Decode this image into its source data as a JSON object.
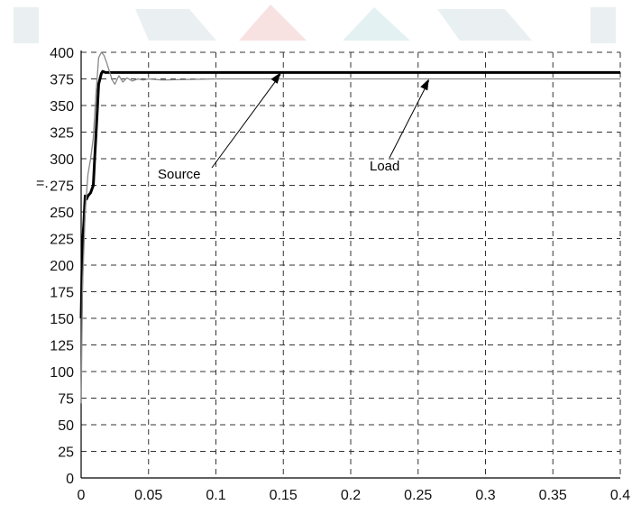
{
  "chart_data": {
    "type": "line",
    "title": "",
    "xlabel": "",
    "ylabel": "",
    "xlim": [
      0,
      0.4
    ],
    "ylim": [
      0,
      400
    ],
    "grid": true,
    "x_ticks": [
      "0",
      "0.05",
      "0.1",
      "0.15",
      "0.2",
      "0.25",
      "0.3",
      "0.35",
      "0.4"
    ],
    "y_ticks": [
      "0",
      "25",
      "50",
      "75",
      "100",
      "125",
      "150",
      "175",
      "200",
      "225",
      "250",
      "275",
      "300",
      "325",
      "350",
      "375",
      "400"
    ],
    "series": [
      {
        "name": "Source",
        "color": "#000000",
        "style": "bold",
        "x": [
          0,
          0.001,
          0.002,
          0.003,
          0.004,
          0.005,
          0.007,
          0.009,
          0.01,
          0.012,
          0.013,
          0.015,
          0.016,
          0.018,
          0.02,
          0.025,
          0.05,
          0.1,
          0.15,
          0.2,
          0.25,
          0.3,
          0.35,
          0.4
        ],
        "y": [
          150,
          220,
          240,
          265,
          262,
          265,
          268,
          275,
          300,
          345,
          370,
          380,
          382,
          381,
          381,
          381,
          381,
          381,
          381,
          381,
          381,
          381,
          381,
          381
        ]
      },
      {
        "name": "Load",
        "color": "#888888",
        "style": "thin",
        "x": [
          0,
          0.001,
          0.003,
          0.005,
          0.007,
          0.009,
          0.011,
          0.013,
          0.015,
          0.017,
          0.019,
          0.021,
          0.023,
          0.025,
          0.028,
          0.031,
          0.034,
          0.038,
          0.042,
          0.046,
          0.05,
          0.06,
          0.1,
          0.15,
          0.2,
          0.25,
          0.3,
          0.35,
          0.4
        ],
        "y": [
          70,
          180,
          250,
          285,
          300,
          320,
          360,
          395,
          400,
          397,
          390,
          382,
          374,
          370,
          378,
          372,
          376,
          373,
          375,
          374,
          375,
          374,
          375,
          375,
          375,
          375,
          375,
          375,
          375
        ]
      }
    ],
    "annotations": [
      {
        "label": "Source",
        "points_to": [
          0.148,
          381
        ]
      },
      {
        "label": "Load",
        "points_to": [
          0.258,
          375
        ]
      }
    ],
    "stray_mark": "=. "
  }
}
